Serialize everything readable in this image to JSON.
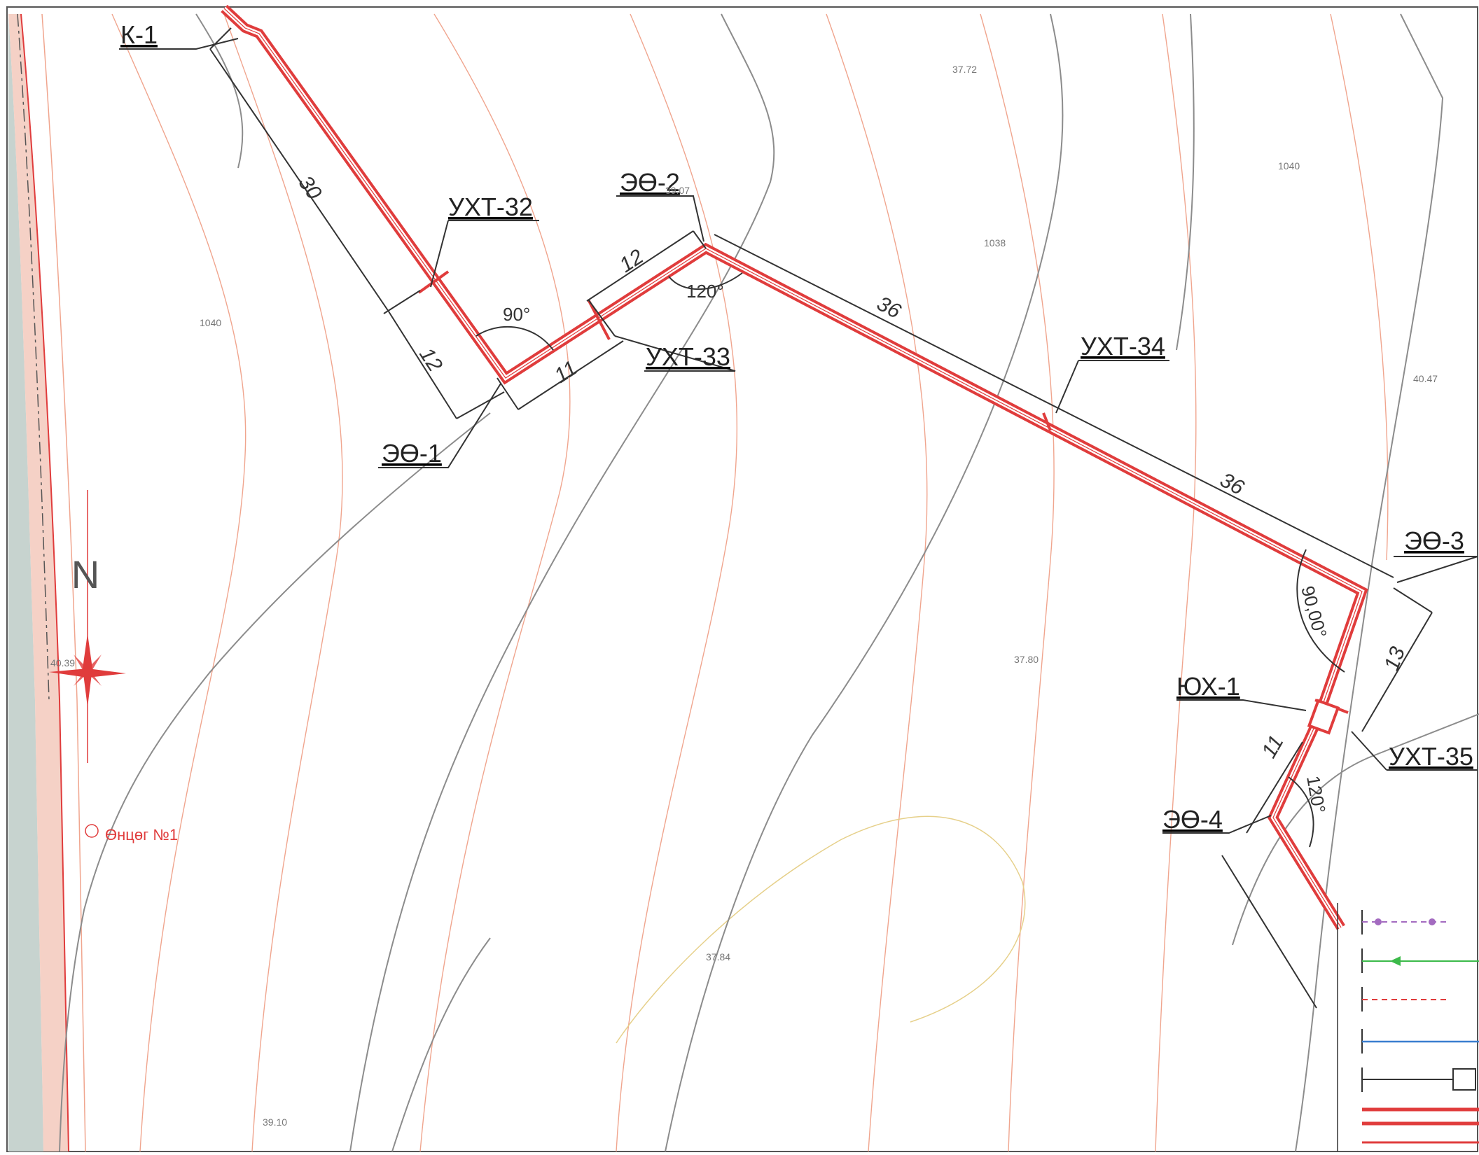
{
  "colors": {
    "pipe": "#e03c3c",
    "contour": "#f0a58e",
    "contour_yellow": "#e6d08a",
    "road": "#8c8c8c",
    "dim": "#333333",
    "shore": "#b9c8c4",
    "legend_purple": "#a36bc0",
    "legend_green": "#3cba4a",
    "legend_blue": "#3a7ecf"
  },
  "labels": {
    "k1": "К-1",
    "uht32": "УХТ-32",
    "uht33": "УХТ-33",
    "uht34": "УХТ-34",
    "uht35": "УХТ-35",
    "eo1": "ЭӨ-1",
    "eo2": "ЭӨ-2",
    "eo3": "ЭӨ-3",
    "eo4": "ЭӨ-4",
    "yux1": "ЮХ-1",
    "north": "N",
    "well": "Өнцөг №1"
  },
  "dimensions": {
    "d30": "30",
    "d12a": "12",
    "d12b": "12",
    "d11a": "11",
    "d36a": "36",
    "d36b": "36",
    "d13": "13",
    "d11b": "11"
  },
  "angles": {
    "a90": "90°",
    "a120a": "120°",
    "a90b": "90,00°",
    "a120b": "120°"
  },
  "elevations": {
    "e3772": "37.72",
    "e1040a": "1040",
    "e1038": "1038",
    "e1040b": "1040",
    "e4047": "40.47",
    "e3780": "37.80",
    "e3784": "37.84",
    "e3910": "39.10",
    "e4039": "40.39",
    "e3907": "39.07"
  },
  "legend": {
    "items": [
      "line-purple-dotted",
      "line-green-arrow",
      "line-red-dashed-arrow",
      "line-blue",
      "line-with-box",
      "line-double-red"
    ]
  }
}
